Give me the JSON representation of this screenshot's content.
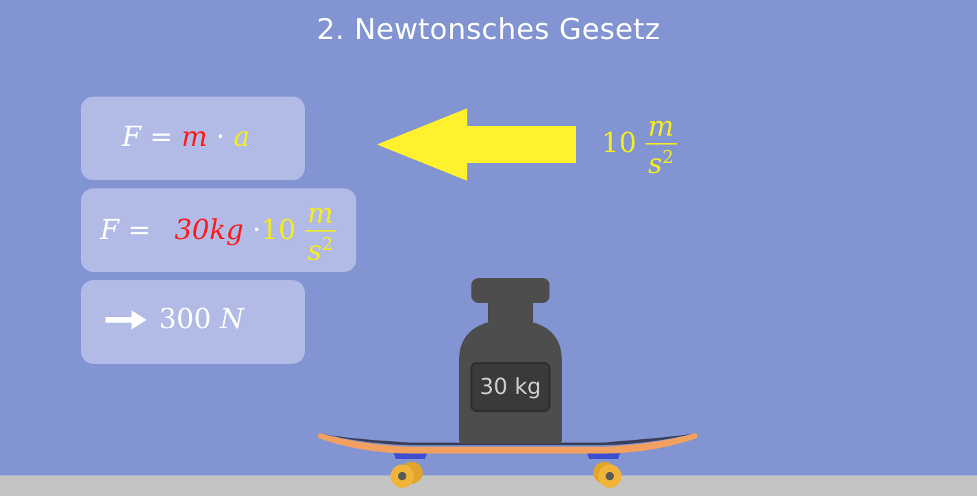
{
  "title": "2. Newtonsches Gesetz",
  "formula1": {
    "F": "F",
    "eq": "=",
    "m": "m",
    "dot": "·",
    "a": "a"
  },
  "formula2": {
    "F": "F",
    "eq": "=",
    "mass": "30kg",
    "dot": "·",
    "accel_value": "10",
    "num": "m",
    "den_base": "s",
    "den_exp": "2"
  },
  "result": {
    "value": "300",
    "unit": "N"
  },
  "acceleration": {
    "value": "10",
    "num": "m",
    "den_base": "s",
    "den_exp": "2"
  },
  "weight": {
    "label": "30 kg"
  },
  "colors": {
    "background": "#8294d2",
    "box": "#b1bbe6",
    "mass": "#ff1a1a",
    "acceleration": "#f5ec1e",
    "weight": "#4d4d4d",
    "board": "#f2a060",
    "ground": "#c4c4c4"
  }
}
